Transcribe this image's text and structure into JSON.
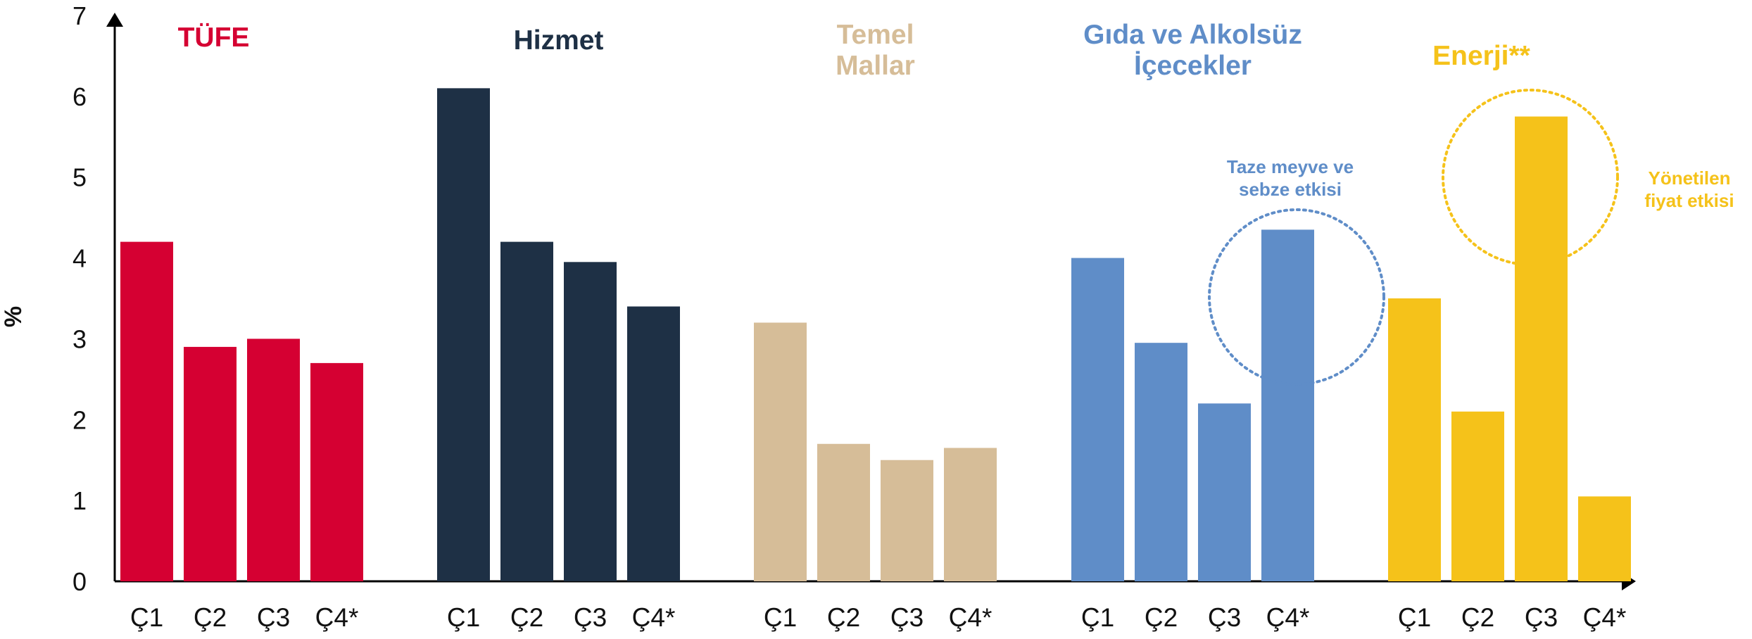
{
  "chart_data": {
    "type": "bar",
    "ylabel": "%",
    "ylim": [
      0,
      7
    ],
    "yticks": [
      "0",
      "1",
      "2",
      "3",
      "4",
      "5",
      "6",
      "7"
    ],
    "categories": [
      "Ç1",
      "Ç2",
      "Ç3",
      "Ç4*"
    ],
    "grid": false,
    "groups": [
      {
        "title": [
          "TÜFE"
        ],
        "color": "#d50032",
        "values": [
          4.2,
          2.9,
          3.0,
          2.7
        ]
      },
      {
        "title": [
          "Hizmet"
        ],
        "color": "#1e3045",
        "values": [
          6.1,
          4.2,
          3.95,
          3.4
        ]
      },
      {
        "title": [
          "Temel",
          "Mallar"
        ],
        "color": "#d6bd98",
        "values": [
          3.2,
          1.7,
          1.5,
          1.65
        ]
      },
      {
        "title": [
          "Gıda ve Alkolsüz",
          "İçecekler"
        ],
        "color": "#5f8dc8",
        "values": [
          4.0,
          2.95,
          2.2,
          4.35
        ]
      },
      {
        "title": [
          "Enerji**"
        ],
        "color": "#f5c21a",
        "values": [
          3.5,
          2.1,
          5.75,
          1.05
        ]
      }
    ],
    "annotations": [
      {
        "text": [
          "Taze meyve ve",
          "sebze etkisi"
        ],
        "group": 3,
        "bar": 3,
        "color": "#5f8dc8"
      },
      {
        "text": [
          "Yönetilen",
          "fiyat etkisi"
        ],
        "group": 4,
        "bar": 2,
        "color": "#f5c21a"
      }
    ]
  }
}
